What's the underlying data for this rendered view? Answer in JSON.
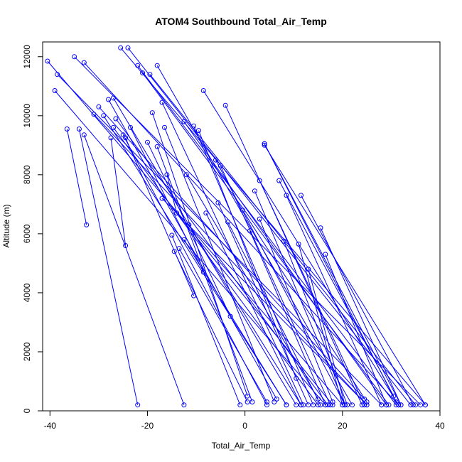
{
  "chart_data": {
    "type": "scatter",
    "title": "ATOM4 Southbound Total_Air_Temp",
    "xlabel": "Total_Air_Temp",
    "ylabel": "Altitude (m)",
    "xlim": [
      -41.5,
      40
    ],
    "ylim": [
      0,
      12500
    ],
    "xticks": [
      -40,
      -20,
      0,
      20,
      40
    ],
    "yticks": [
      0,
      2000,
      4000,
      6000,
      8000,
      10000,
      12000
    ],
    "grid": false,
    "legend": "none",
    "series_color": "#0000ff",
    "marker": "open-circle",
    "connected": true,
    "profiles": [
      {
        "x": [
          -40.5,
          20.0
        ],
        "y": [
          11850,
          200
        ]
      },
      {
        "x": [
          -38.5,
          28.0
        ],
        "y": [
          11400,
          200
        ]
      },
      {
        "x": [
          -39.0,
          16.5
        ],
        "y": [
          10850,
          200
        ]
      },
      {
        "x": [
          -35.0,
          36.0
        ],
        "y": [
          12000,
          200
        ]
      },
      {
        "x": [
          -33.0,
          31.5
        ],
        "y": [
          11800,
          200
        ]
      },
      {
        "x": [
          -36.5,
          -32.5
        ],
        "y": [
          9550,
          6300
        ]
      },
      {
        "x": [
          -34.0,
          -22.0
        ],
        "y": [
          9550,
          200
        ]
      },
      {
        "x": [
          -33.0,
          -12.5
        ],
        "y": [
          9350,
          200
        ]
      },
      {
        "x": [
          -31.0,
          25.0
        ],
        "y": [
          10050,
          200
        ]
      },
      {
        "x": [
          -30.0,
          24.5
        ],
        "y": [
          10300,
          400
        ]
      },
      {
        "x": [
          -27.5,
          -24.5
        ],
        "y": [
          9250,
          5600
        ]
      },
      {
        "x": [
          -25.5,
          37.0
        ],
        "y": [
          12300,
          200
        ]
      },
      {
        "x": [
          -24.0,
          34.0
        ],
        "y": [
          12300,
          200
        ]
      },
      {
        "x": [
          -22.0,
          31.0
        ],
        "y": [
          11700,
          200
        ]
      },
      {
        "x": [
          -21.0,
          29.5
        ],
        "y": [
          11450,
          200
        ]
      },
      {
        "x": [
          -19.5,
          35.0
        ],
        "y": [
          11400,
          200
        ]
      },
      {
        "x": [
          -18.0,
          22.0
        ],
        "y": [
          11700,
          200
        ]
      },
      {
        "x": [
          -17.0,
          12.0
        ],
        "y": [
          10450,
          200
        ]
      },
      {
        "x": [
          -27.0,
          10.5
        ],
        "y": [
          10600,
          200
        ]
      },
      {
        "x": [
          -28.0,
          6.5
        ],
        "y": [
          10550,
          400
        ]
      },
      {
        "x": [
          -29.0,
          8.5
        ],
        "y": [
          10000,
          200
        ]
      },
      {
        "x": [
          -27.0,
          15.0
        ],
        "y": [
          9600,
          200
        ]
      },
      {
        "x": [
          -26.5,
          17.0
        ],
        "y": [
          9900,
          200
        ]
      },
      {
        "x": [
          -25.0,
          4.5
        ],
        "y": [
          9350,
          200
        ]
      },
      {
        "x": [
          -23.5,
          -8.5
        ],
        "y": [
          9600,
          4700
        ]
      },
      {
        "x": [
          -24.5,
          -10.5
        ],
        "y": [
          9250,
          3900
        ]
      },
      {
        "x": [
          -20.0,
          -3.0
        ],
        "y": [
          9100,
          3200
        ]
      },
      {
        "x": [
          -19.0,
          0.5
        ],
        "y": [
          10100,
          500
        ]
      },
      {
        "x": [
          -18.0,
          1.5
        ],
        "y": [
          8950,
          300
        ]
      },
      {
        "x": [
          -16.5,
          6.0
        ],
        "y": [
          9600,
          300
        ]
      },
      {
        "x": [
          -16.0,
          -14.0
        ],
        "y": [
          8000,
          6700
        ]
      },
      {
        "x": [
          -17.0,
          25.0
        ],
        "y": [
          7200,
          200
        ]
      },
      {
        "x": [
          -12.5,
          29.0
        ],
        "y": [
          9800,
          200
        ]
      },
      {
        "x": [
          -10.5,
          14.0
        ],
        "y": [
          9650,
          200
        ]
      },
      {
        "x": [
          -9.5,
          10.5
        ],
        "y": [
          9500,
          1100
        ]
      },
      {
        "x": [
          -8.5,
          31.5
        ],
        "y": [
          10850,
          200
        ]
      },
      {
        "x": [
          -4.0,
          24.0
        ],
        "y": [
          10350,
          200
        ]
      },
      {
        "x": [
          -6.0,
          20.5
        ],
        "y": [
          8500,
          200
        ]
      },
      {
        "x": [
          -5.0,
          17.5
        ],
        "y": [
          8300,
          200
        ]
      },
      {
        "x": [
          -12.0,
          15.0
        ],
        "y": [
          8000,
          400
        ]
      },
      {
        "x": [
          -14.0,
          18.0
        ],
        "y": [
          6700,
          200
        ]
      },
      {
        "x": [
          -11.5,
          11.5
        ],
        "y": [
          6300,
          200
        ]
      },
      {
        "x": [
          -12.5,
          8.5
        ],
        "y": [
          5800,
          200
        ]
      },
      {
        "x": [
          4.0,
          32.0
        ],
        "y": [
          9050,
          200
        ]
      },
      {
        "x": [
          4.0,
          37.0
        ],
        "y": [
          9000,
          200
        ]
      },
      {
        "x": [
          4.0,
          31.0
        ],
        "y": [
          9050,
          300
        ]
      },
      {
        "x": [
          3.0,
          24.5
        ],
        "y": [
          7800,
          200
        ]
      },
      {
        "x": [
          2.0,
          20.5
        ],
        "y": [
          7450,
          200
        ]
      },
      {
        "x": [
          7.0,
          30.5
        ],
        "y": [
          7800,
          500
        ]
      },
      {
        "x": [
          8.5,
          28.0
        ],
        "y": [
          7300,
          200
        ]
      },
      {
        "x": [
          11.5,
          34.5
        ],
        "y": [
          7300,
          200
        ]
      },
      {
        "x": [
          15.5,
          32.0
        ],
        "y": [
          6200,
          200
        ]
      },
      {
        "x": [
          16.5,
          29.0
        ],
        "y": [
          5300,
          200
        ]
      },
      {
        "x": [
          -0.5,
          25.0
        ],
        "y": [
          6800,
          300
        ]
      },
      {
        "x": [
          3.0,
          18.0
        ],
        "y": [
          6500,
          300
        ]
      },
      {
        "x": [
          -3.5,
          15.5
        ],
        "y": [
          6400,
          200
        ]
      },
      {
        "x": [
          -5.5,
          13.0
        ],
        "y": [
          7050,
          200
        ]
      },
      {
        "x": [
          -8.0,
          11.5
        ],
        "y": [
          6700,
          200
        ]
      },
      {
        "x": [
          1.0,
          16.5
        ],
        "y": [
          6100,
          200
        ]
      },
      {
        "x": [
          -15.0,
          -1.0
        ],
        "y": [
          5950,
          200
        ]
      },
      {
        "x": [
          -14.5,
          0.5
        ],
        "y": [
          5400,
          300
        ]
      },
      {
        "x": [
          -13.5,
          4.5
        ],
        "y": [
          5500,
          300
        ]
      },
      {
        "x": [
          8.0,
          21.0
        ],
        "y": [
          5750,
          200
        ]
      },
      {
        "x": [
          11.0,
          20.0
        ],
        "y": [
          5650,
          200
        ]
      },
      {
        "x": [
          13.0,
          20.5
        ],
        "y": [
          4800,
          200
        ]
      }
    ]
  }
}
